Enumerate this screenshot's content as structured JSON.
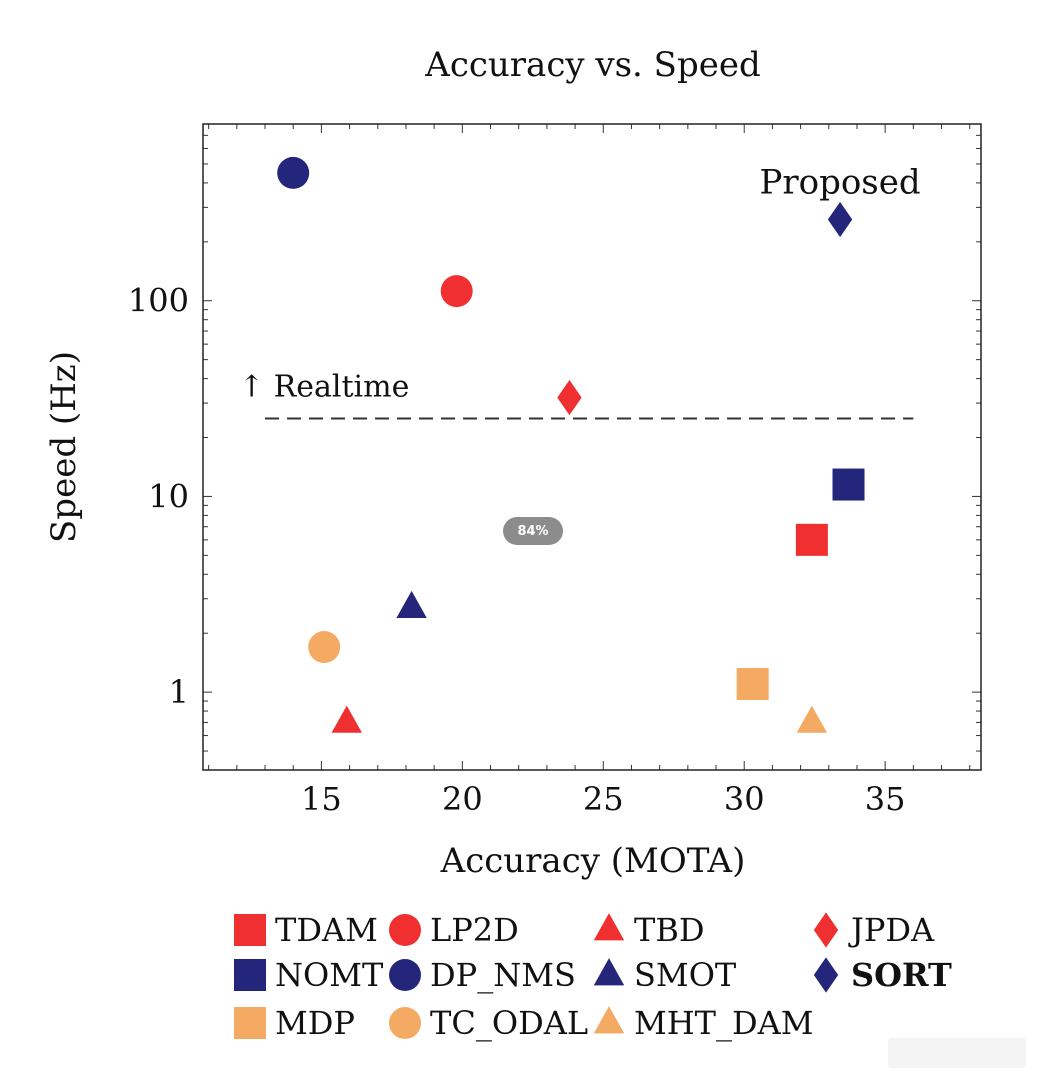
{
  "chart_data": {
    "type": "scatter",
    "title": "Accuracy vs. Speed",
    "xlabel": "Accuracy (MOTA)",
    "ylabel": "Speed (Hz)",
    "xscale": "linear",
    "yscale": "log",
    "xlim": [
      10.8,
      38.4
    ],
    "ylim": [
      0.4,
      800
    ],
    "xticks": [
      15,
      20,
      25,
      30,
      35
    ],
    "yticks": [
      1,
      10,
      100
    ],
    "ytick_labels": [
      "1",
      "10",
      "100"
    ],
    "colors": {
      "red": "#f03030",
      "navy": "#23267a",
      "orange": "#f5aa64"
    },
    "series": [
      {
        "name": "TDAM",
        "marker": "square",
        "color": "red",
        "x": 32.4,
        "y": 6.0
      },
      {
        "name": "LP2D",
        "marker": "circle",
        "color": "red",
        "x": 19.8,
        "y": 112
      },
      {
        "name": "TBD",
        "marker": "triangle",
        "color": "red",
        "x": 15.9,
        "y": 0.7
      },
      {
        "name": "JPDA",
        "marker": "diamond",
        "color": "red",
        "x": 23.8,
        "y": 32
      },
      {
        "name": "NOMT",
        "marker": "square",
        "color": "navy",
        "x": 33.7,
        "y": 11.5
      },
      {
        "name": "DP_NMS",
        "marker": "circle",
        "color": "navy",
        "x": 14.0,
        "y": 450
      },
      {
        "name": "SMOT",
        "marker": "triangle",
        "color": "navy",
        "x": 18.2,
        "y": 2.7
      },
      {
        "name": "SORT",
        "marker": "diamond",
        "color": "navy",
        "x": 33.4,
        "y": 260,
        "bold": true
      },
      {
        "name": "MDP",
        "marker": "square",
        "color": "orange",
        "x": 30.3,
        "y": 1.1
      },
      {
        "name": "TC_ODAL",
        "marker": "circle",
        "color": "orange",
        "x": 15.1,
        "y": 1.7
      },
      {
        "name": "MHT_DAM",
        "marker": "triangle",
        "color": "orange",
        "x": 32.4,
        "y": 0.7
      }
    ],
    "annotations": {
      "realtime": {
        "label": "↑ Realtime",
        "y": 25,
        "x_from": 13.0,
        "x_to": 36.0
      },
      "proposed": {
        "label": "Proposed",
        "target": "SORT"
      }
    },
    "legend": {
      "placement": "bottom",
      "rows": [
        [
          "TDAM",
          "LP2D",
          "TBD",
          "JPDA"
        ],
        [
          "NOMT",
          "DP_NMS",
          "SMOT",
          "SORT"
        ],
        [
          "MDP",
          "TC_ODAL",
          "MHT_DAM"
        ]
      ]
    }
  },
  "overlay": {
    "zoom_label": "84%"
  }
}
